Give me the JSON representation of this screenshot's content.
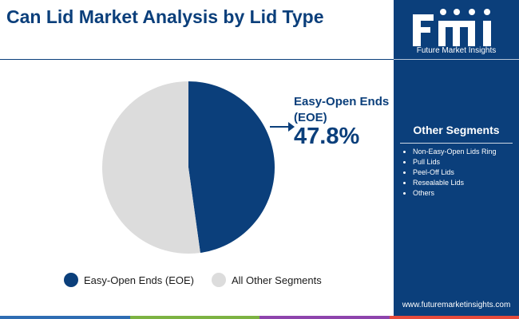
{
  "title": "Can Lid Market Analysis by Lid Type",
  "chart_data": {
    "type": "pie",
    "title": "Can Lid Market Analysis by Lid Type",
    "categories": [
      "Easy-Open Ends (EOE)",
      "All Other Segments"
    ],
    "values": [
      47.8,
      52.2
    ],
    "unit": "%",
    "colors": [
      "#0b3f7b",
      "#dcdcdc"
    ],
    "callout": {
      "label": "Easy-Open Ends (EOE)",
      "value": "47.8%"
    },
    "legend_position": "bottom"
  },
  "sidebar": {
    "logo_caption": "Future Market Insights",
    "segments_title": "Other Segments",
    "segments": [
      "Non-Easy-Open Lids Ring",
      "Pull Lids",
      "Peel-Off Lids",
      "Resealable Lids",
      "Others"
    ],
    "website": "www.futuremarketinsights.com",
    "background": "#0b3f7b"
  },
  "footer_colors": [
    "#2e6db3",
    "#7cb342",
    "#8e44ad",
    "#e74c3c"
  ]
}
